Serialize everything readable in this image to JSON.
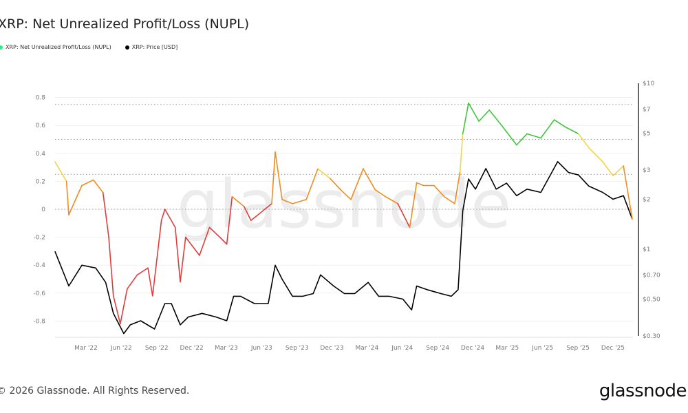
{
  "title": "XRP: Net Unrealized Profit/Loss (NUPL)",
  "footer": "© 2026 Glassnode. All Rights Reserved.",
  "logo_text": "glassnode",
  "watermark": "glassnode",
  "chart_data": {
    "type": "line",
    "title": "XRP: Net Unrealized Profit/Loss (NUPL)",
    "legend_placement": "top-left",
    "grid": true,
    "x_ticks": [
      "Mar '22",
      "Jun '22",
      "Sep '22",
      "Dec '22",
      "Mar '23",
      "Jun '23",
      "Sep '23",
      "Dec '23",
      "Mar '24",
      "Jun '24",
      "Sep '24",
      "Dec '24",
      "Mar '25",
      "Jun '25",
      "Sep '25",
      "Dec '25"
    ],
    "x_tick_dates": [
      "2022-03-01",
      "2022-06-01",
      "2022-09-01",
      "2022-12-01",
      "2023-03-01",
      "2023-06-01",
      "2023-09-01",
      "2023-12-01",
      "2024-03-01",
      "2024-06-01",
      "2024-09-01",
      "2024-12-01",
      "2025-03-01",
      "2025-06-01",
      "2025-09-01",
      "2025-12-01"
    ],
    "y_left": {
      "ticks": [
        "0.8",
        "0.6",
        "0.4",
        "0.2",
        "0",
        "-0.2",
        "-0.4",
        "-0.6",
        "-0.8"
      ],
      "tick_values": [
        0.8,
        0.6,
        0.4,
        0.2,
        0,
        -0.2,
        -0.4,
        -0.6,
        -0.8
      ],
      "range": [
        -0.9,
        0.9
      ]
    },
    "y_right": {
      "scale": "log",
      "ticks": [
        "$10",
        "$7",
        "$5",
        "$3",
        "$2",
        "$1",
        "$0.70",
        "$0.50",
        "$0.30"
      ],
      "tick_values": [
        10,
        7,
        5,
        3,
        2,
        1,
        0.7,
        0.5,
        0.3
      ],
      "range": [
        0.3,
        10
      ]
    },
    "reference_lines": [
      0.75,
      0.5,
      0.25,
      0
    ],
    "zone_colors": {
      "capitulation": "#e03c3c",
      "hope_fear": "#f08c1e",
      "optimism": "#f5d442",
      "belief": "#3cc83c",
      "euphoria": "#4a7cf0"
    },
    "series": [
      {
        "name": "XRP: Net Unrealized Profit/Loss (NUPL)",
        "legend_color": "#2ee88a",
        "axis": "left",
        "points": [
          [
            "2021-12-21",
            0.34
          ],
          [
            "2022-01-20",
            0.2
          ],
          [
            "2022-01-26",
            -0.04
          ],
          [
            "2022-03-01",
            0.17
          ],
          [
            "2022-03-31",
            0.21
          ],
          [
            "2022-04-25",
            0.12
          ],
          [
            "2022-05-10",
            -0.2
          ],
          [
            "2022-05-22",
            -0.62
          ],
          [
            "2022-06-09",
            -0.82
          ],
          [
            "2022-06-27",
            -0.57
          ],
          [
            "2022-07-23",
            -0.47
          ],
          [
            "2022-08-20",
            -0.42
          ],
          [
            "2022-09-01",
            -0.62
          ],
          [
            "2022-09-24",
            -0.08
          ],
          [
            "2022-10-03",
            0.0
          ],
          [
            "2022-10-30",
            -0.13
          ],
          [
            "2022-11-12",
            -0.52
          ],
          [
            "2022-11-26",
            -0.2
          ],
          [
            "2023-01-01",
            -0.33
          ],
          [
            "2023-01-27",
            -0.13
          ],
          [
            "2023-02-23",
            -0.2
          ],
          [
            "2023-03-13",
            -0.25
          ],
          [
            "2023-03-27",
            0.09
          ],
          [
            "2023-04-27",
            0.02
          ],
          [
            "2023-05-15",
            -0.08
          ],
          [
            "2023-07-08",
            0.04
          ],
          [
            "2023-07-17",
            0.41
          ],
          [
            "2023-08-04",
            0.07
          ],
          [
            "2023-08-31",
            0.04
          ],
          [
            "2023-10-06",
            0.07
          ],
          [
            "2023-11-05",
            0.29
          ],
          [
            "2023-12-07",
            0.22
          ],
          [
            "2024-01-03",
            0.14
          ],
          [
            "2024-01-30",
            0.07
          ],
          [
            "2024-03-02",
            0.29
          ],
          [
            "2024-04-02",
            0.14
          ],
          [
            "2024-04-29",
            0.09
          ],
          [
            "2024-05-31",
            0.04
          ],
          [
            "2024-07-01",
            -0.13
          ],
          [
            "2024-07-19",
            0.19
          ],
          [
            "2024-08-06",
            0.17
          ],
          [
            "2024-09-02",
            0.17
          ],
          [
            "2024-09-29",
            0.09
          ],
          [
            "2024-10-26",
            0.04
          ],
          [
            "2024-11-09",
            0.27
          ],
          [
            "2024-11-16",
            0.54
          ],
          [
            "2024-12-01",
            0.76
          ],
          [
            "2024-12-28",
            0.63
          ],
          [
            "2025-01-24",
            0.71
          ],
          [
            "2025-02-28",
            0.59
          ],
          [
            "2025-04-05",
            0.46
          ],
          [
            "2025-05-02",
            0.54
          ],
          [
            "2025-06-07",
            0.51
          ],
          [
            "2025-07-12",
            0.64
          ],
          [
            "2025-08-09",
            0.59
          ],
          [
            "2025-09-13",
            0.54
          ],
          [
            "2025-10-10",
            0.44
          ],
          [
            "2025-11-15",
            0.34
          ],
          [
            "2025-12-12",
            0.24
          ],
          [
            "2026-01-08",
            0.31
          ],
          [
            "2026-01-31",
            -0.07
          ]
        ]
      },
      {
        "name": "XRP: Price [USD]",
        "legend_color": "#000000",
        "axis": "right",
        "points": [
          [
            "2021-12-21",
            0.97
          ],
          [
            "2022-01-26",
            0.6
          ],
          [
            "2022-03-01",
            0.8
          ],
          [
            "2022-04-06",
            0.77
          ],
          [
            "2022-05-02",
            0.63
          ],
          [
            "2022-05-22",
            0.41
          ],
          [
            "2022-06-18",
            0.31
          ],
          [
            "2022-07-05",
            0.35
          ],
          [
            "2022-08-01",
            0.37
          ],
          [
            "2022-09-06",
            0.33
          ],
          [
            "2022-10-03",
            0.47
          ],
          [
            "2022-10-20",
            0.47
          ],
          [
            "2022-11-12",
            0.35
          ],
          [
            "2022-12-03",
            0.39
          ],
          [
            "2023-01-08",
            0.41
          ],
          [
            "2023-02-13",
            0.39
          ],
          [
            "2023-03-13",
            0.37
          ],
          [
            "2023-03-31",
            0.52
          ],
          [
            "2023-04-18",
            0.52
          ],
          [
            "2023-05-24",
            0.47
          ],
          [
            "2023-06-29",
            0.47
          ],
          [
            "2023-07-17",
            0.8
          ],
          [
            "2023-08-04",
            0.66
          ],
          [
            "2023-08-31",
            0.52
          ],
          [
            "2023-09-27",
            0.52
          ],
          [
            "2023-10-24",
            0.54
          ],
          [
            "2023-11-12",
            0.7
          ],
          [
            "2023-12-16",
            0.6
          ],
          [
            "2024-01-13",
            0.54
          ],
          [
            "2024-02-09",
            0.54
          ],
          [
            "2024-03-15",
            0.63
          ],
          [
            "2024-04-11",
            0.52
          ],
          [
            "2024-05-08",
            0.52
          ],
          [
            "2024-06-13",
            0.5
          ],
          [
            "2024-07-06",
            0.43
          ],
          [
            "2024-07-19",
            0.6
          ],
          [
            "2024-08-15",
            0.57
          ],
          [
            "2024-09-20",
            0.54
          ],
          [
            "2024-10-17",
            0.52
          ],
          [
            "2024-11-04",
            0.57
          ],
          [
            "2024-11-16",
            1.7
          ],
          [
            "2024-12-01",
            2.65
          ],
          [
            "2024-12-19",
            2.3
          ],
          [
            "2025-01-15",
            3.06
          ],
          [
            "2025-02-11",
            2.3
          ],
          [
            "2025-03-10",
            2.5
          ],
          [
            "2025-04-05",
            2.1
          ],
          [
            "2025-05-02",
            2.3
          ],
          [
            "2025-06-07",
            2.2
          ],
          [
            "2025-07-21",
            3.37
          ],
          [
            "2025-08-18",
            2.9
          ],
          [
            "2025-09-13",
            2.8
          ],
          [
            "2025-10-10",
            2.4
          ],
          [
            "2025-11-15",
            2.2
          ],
          [
            "2025-12-12",
            2.0
          ],
          [
            "2026-01-08",
            2.1
          ],
          [
            "2026-01-31",
            1.52
          ]
        ]
      }
    ]
  }
}
